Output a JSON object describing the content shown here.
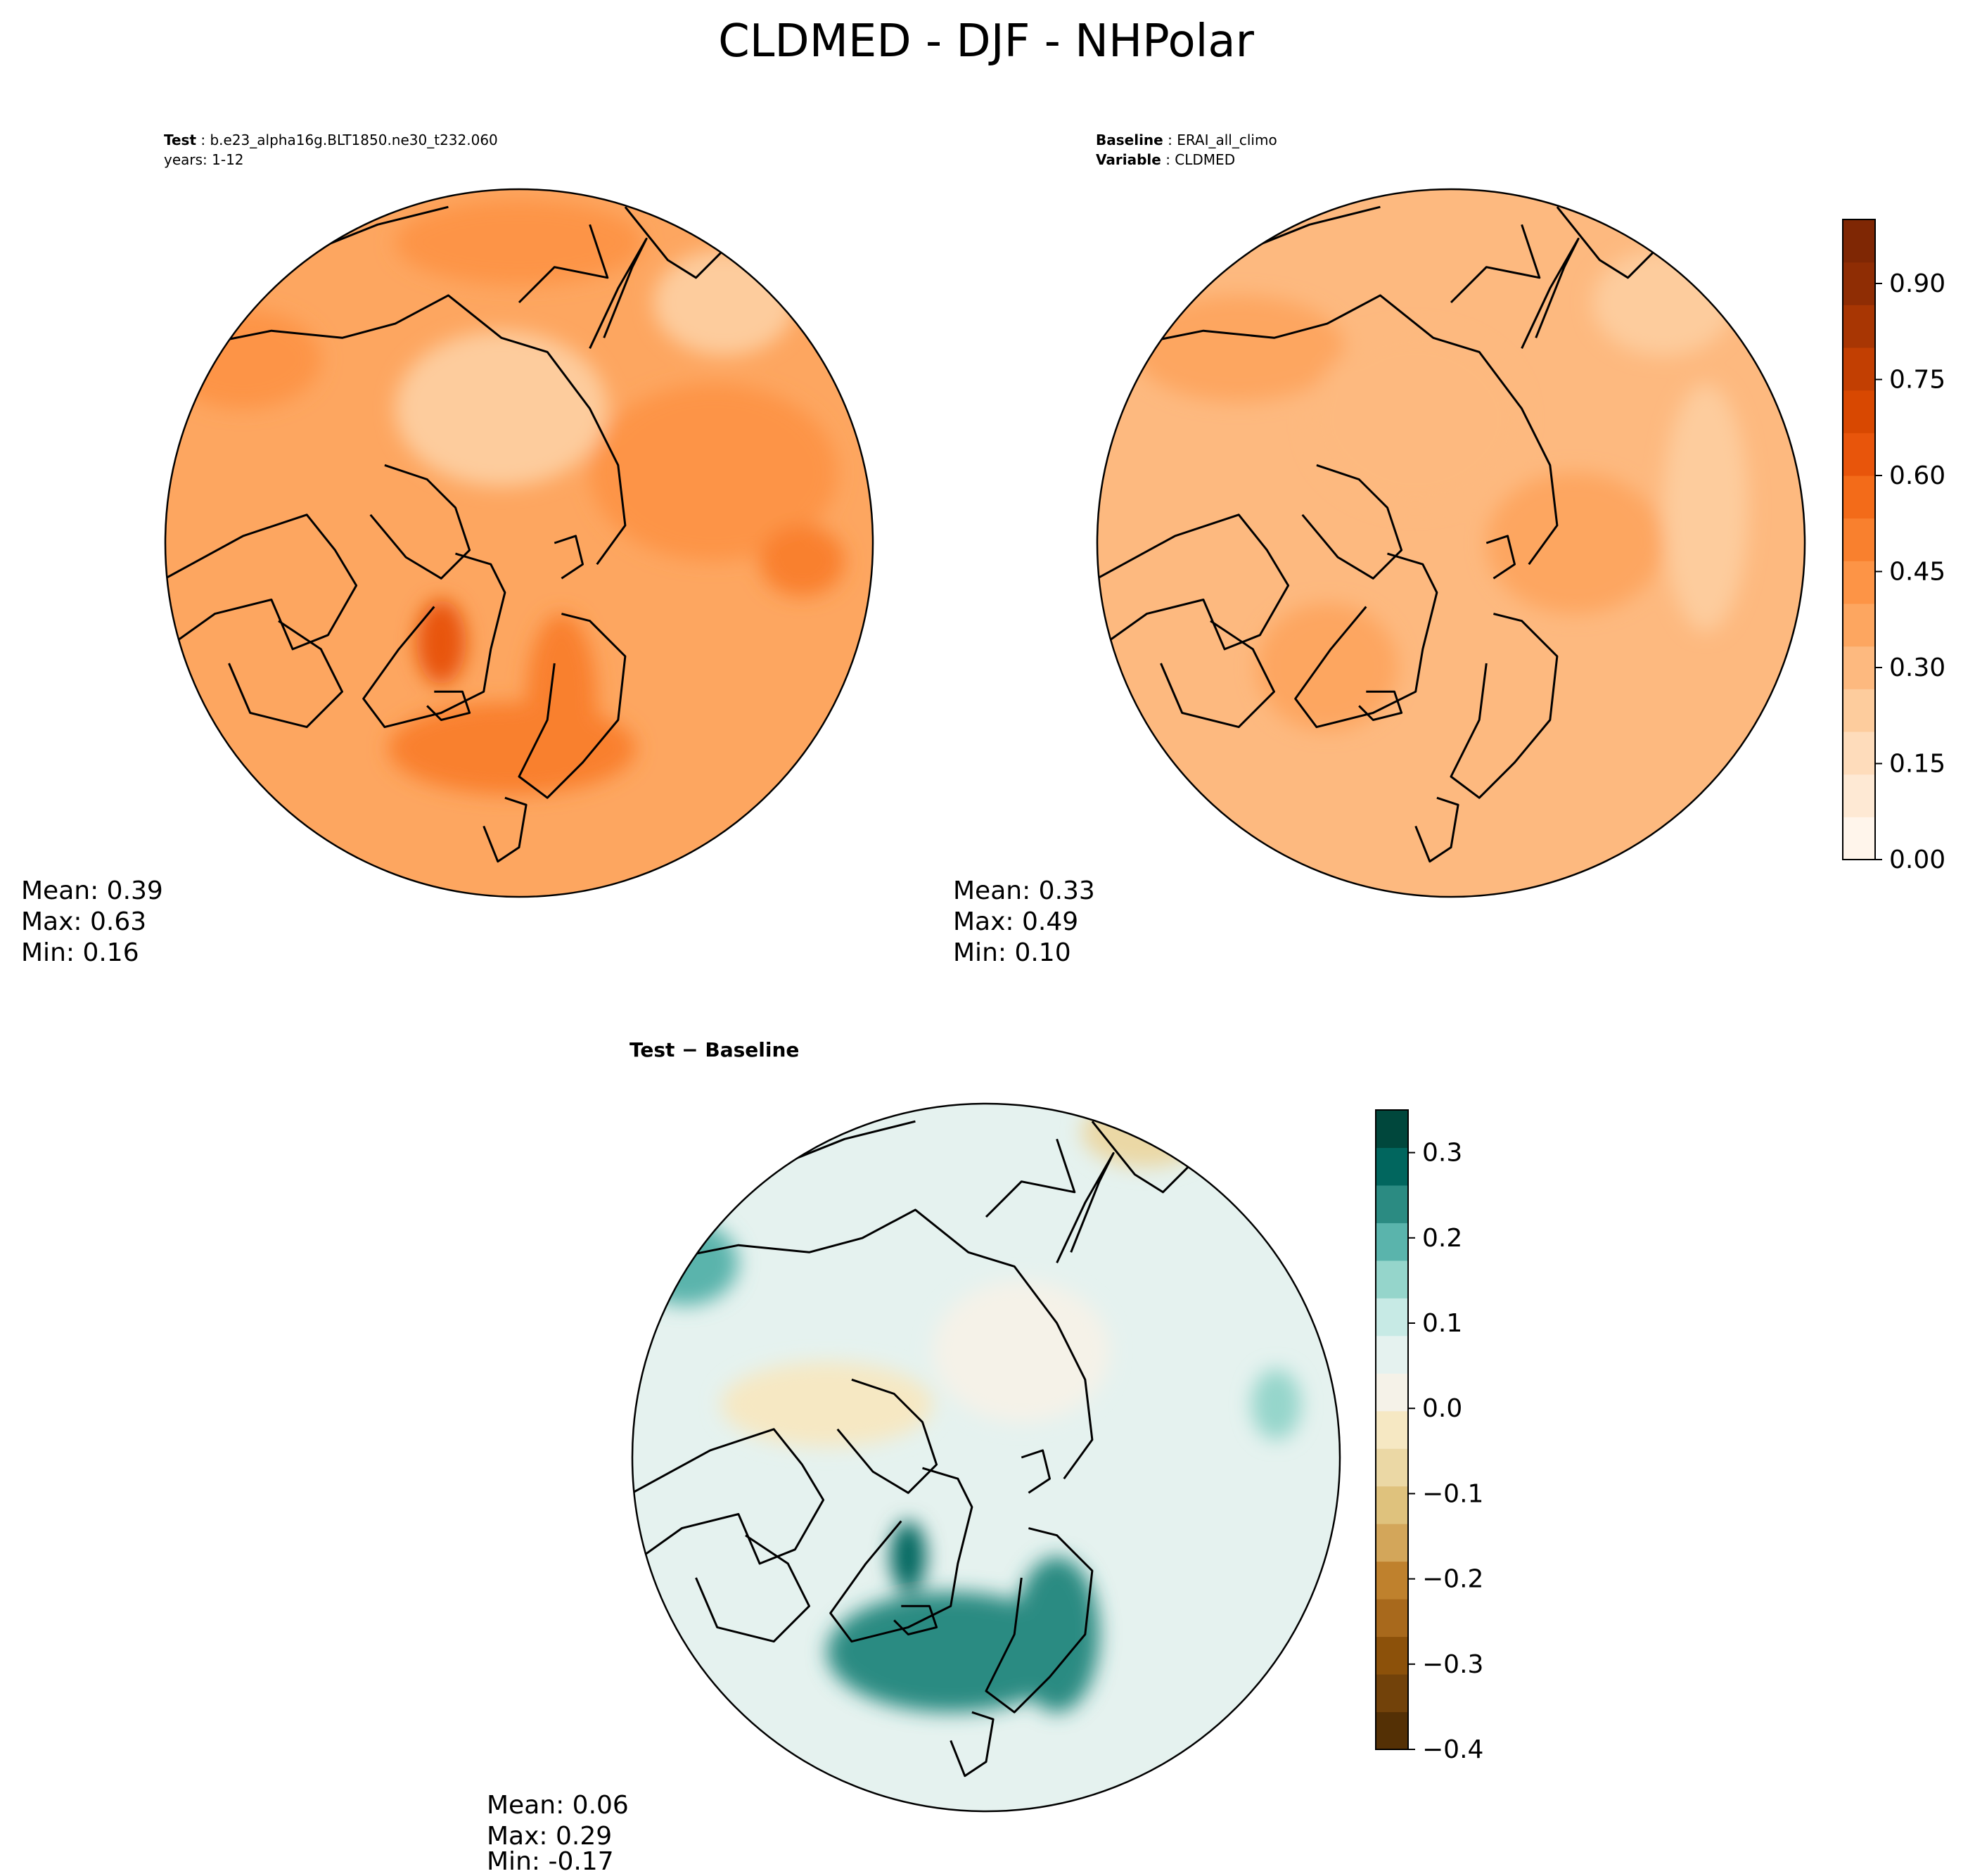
{
  "title": "CLDMED - DJF - NHPolar",
  "panels": {
    "test": {
      "header": [
        {
          "key": "Test",
          "value": "b.e23_alpha16g.BLT1850.ne30_t232.060"
        },
        {
          "key": "",
          "value": "years: 1-12"
        }
      ],
      "stats": [
        "Mean:  0.39",
        "Max:  0.63",
        "Min:  0.16"
      ]
    },
    "baseline": {
      "header": [
        {
          "key": "Baseline",
          "value": "ERAI_all_climo"
        },
        {
          "key": "Variable",
          "value": "CLDMED"
        }
      ],
      "stats": [
        "Mean:  0.33",
        "Max:  0.49",
        "Min:  0.10"
      ]
    },
    "diff": {
      "header": [
        {
          "key": "Test − Baseline",
          "value": ""
        }
      ],
      "stats": [
        "Mean:  0.06",
        "Max:  0.29",
        "Min: -0.17"
      ]
    }
  },
  "colorbars": {
    "abs": {
      "colors": [
        "#fff5eb",
        "#fee9d4",
        "#fedcbb",
        "#fdcc9d",
        "#fdb97f",
        "#fda660",
        "#fd9446",
        "#f9802e",
        "#f36b19",
        "#e8550b",
        "#d84801",
        "#c23f02",
        "#a83603",
        "#8f2d04",
        "#7f2704"
      ],
      "ticks": [
        {
          "value": 0.0,
          "label": "0.00"
        },
        {
          "value": 0.15,
          "label": "0.15"
        },
        {
          "value": 0.3,
          "label": "0.30"
        },
        {
          "value": 0.45,
          "label": "0.45"
        },
        {
          "value": 0.6,
          "label": "0.60"
        },
        {
          "value": 0.75,
          "label": "0.75"
        },
        {
          "value": 0.9,
          "label": "0.90"
        }
      ],
      "range": [
        0.0,
        1.0
      ]
    },
    "diff": {
      "colors": [
        "#543005",
        "#72420a",
        "#8c510a",
        "#a8691c",
        "#bf812d",
        "#d3a65a",
        "#dfc27d",
        "#ebd8a5",
        "#f6e8c3",
        "#f5f2e8",
        "#e5f2ef",
        "#c7eae5",
        "#95d5cb",
        "#5ab4ac",
        "#2b8b82",
        "#01665e",
        "#00473c"
      ],
      "ticks": [
        {
          "value": -0.4,
          "label": "−0.4"
        },
        {
          "value": -0.3,
          "label": "−0.3"
        },
        {
          "value": -0.2,
          "label": "−0.2"
        },
        {
          "value": -0.1,
          "label": "−0.1"
        },
        {
          "value": 0.0,
          "label": "0.0"
        },
        {
          "value": 0.1,
          "label": "0.1"
        },
        {
          "value": 0.2,
          "label": "0.2"
        },
        {
          "value": 0.3,
          "label": "0.3"
        }
      ],
      "range": [
        -0.4,
        0.35
      ]
    }
  },
  "fields": {
    "test": {
      "base": 0.37,
      "blobs": [
        {
          "dx": -0.78,
          "dy": -0.52,
          "rx": 0.22,
          "ry": 0.14,
          "v": 0.44
        },
        {
          "dx": 0.55,
          "dy": -0.2,
          "rx": 0.35,
          "ry": 0.25,
          "v": 0.45
        },
        {
          "dx": 0.8,
          "dy": 0.05,
          "rx": 0.12,
          "ry": 0.1,
          "v": 0.49
        },
        {
          "dx": -0.02,
          "dy": 0.58,
          "rx": 0.35,
          "ry": 0.13,
          "v": 0.5
        },
        {
          "dx": 0.12,
          "dy": 0.45,
          "rx": 0.1,
          "ry": 0.25,
          "v": 0.5
        },
        {
          "dx": -0.22,
          "dy": 0.28,
          "rx": 0.07,
          "ry": 0.12,
          "v": 0.63
        },
        {
          "dx": -0.05,
          "dy": -0.38,
          "rx": 0.3,
          "ry": 0.22,
          "v": 0.26
        },
        {
          "dx": 0.58,
          "dy": -0.68,
          "rx": 0.2,
          "ry": 0.15,
          "v": 0.26
        },
        {
          "dx": 0.0,
          "dy": -0.85,
          "rx": 0.35,
          "ry": 0.12,
          "v": 0.42
        }
      ]
    },
    "baseline": {
      "base": 0.32,
      "blobs": [
        {
          "dx": -0.6,
          "dy": -0.55,
          "rx": 0.3,
          "ry": 0.15,
          "v": 0.36
        },
        {
          "dx": 0.72,
          "dy": -0.1,
          "rx": 0.12,
          "ry": 0.35,
          "v": 0.22
        },
        {
          "dx": 0.35,
          "dy": 0.0,
          "rx": 0.25,
          "ry": 0.2,
          "v": 0.38
        },
        {
          "dx": -0.35,
          "dy": 0.35,
          "rx": 0.2,
          "ry": 0.18,
          "v": 0.36
        },
        {
          "dx": -0.1,
          "dy": -0.35,
          "rx": 0.3,
          "ry": 0.25,
          "v": 0.28
        },
        {
          "dx": 0.6,
          "dy": -0.68,
          "rx": 0.2,
          "ry": 0.15,
          "v": 0.24
        }
      ]
    },
    "diff": {
      "base": 0.06,
      "blobs": [
        {
          "dx": -0.1,
          "dy": 0.55,
          "rx": 0.35,
          "ry": 0.17,
          "v": 0.26
        },
        {
          "dx": 0.2,
          "dy": 0.5,
          "rx": 0.12,
          "ry": 0.22,
          "v": 0.24
        },
        {
          "dx": -0.22,
          "dy": 0.28,
          "rx": 0.05,
          "ry": 0.1,
          "v": 0.29
        },
        {
          "dx": -0.85,
          "dy": -0.55,
          "rx": 0.15,
          "ry": 0.12,
          "v": 0.18
        },
        {
          "dx": 0.82,
          "dy": -0.15,
          "rx": 0.07,
          "ry": 0.1,
          "v": 0.17
        },
        {
          "dx": -0.45,
          "dy": -0.15,
          "rx": 0.3,
          "ry": 0.12,
          "v": -0.03
        },
        {
          "dx": 0.45,
          "dy": -0.92,
          "rx": 0.18,
          "ry": 0.1,
          "v": -0.08
        },
        {
          "dx": 0.1,
          "dy": -0.3,
          "rx": 0.25,
          "ry": 0.2,
          "v": 0.02
        }
      ]
    }
  }
}
